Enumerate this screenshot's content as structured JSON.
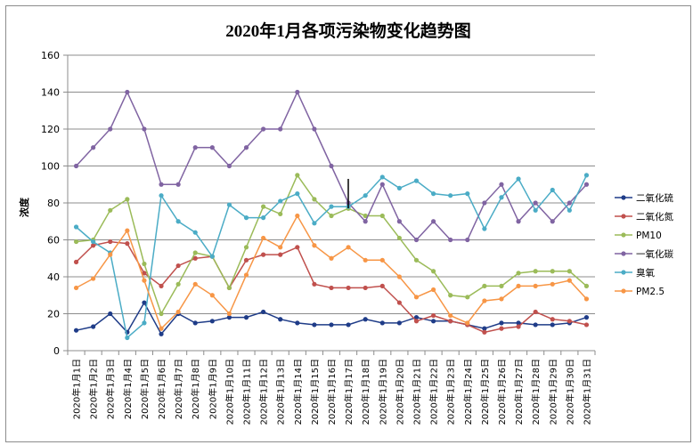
{
  "chart_data": {
    "type": "line",
    "title": "2020年1月各项污染物变化趋势图",
    "xlabel": "",
    "ylabel": "浓度",
    "ylim": [
      0,
      160
    ],
    "yticks": [
      0,
      20,
      40,
      60,
      80,
      100,
      120,
      140,
      160
    ],
    "grid": true,
    "legend_position": "right",
    "categories": [
      "2020年1月1日",
      "2020年1月2日",
      "2020年1月3日",
      "2020年1月4日",
      "2020年1月5日",
      "2020年1月6日",
      "2020年1月7日",
      "2020年1月8日",
      "2020年1月9日",
      "2020年1月10日",
      "2020年1月11日",
      "2020年1月12日",
      "2020年1月13日",
      "2020年1月14日",
      "2020年1月15日",
      "2020年1月16日",
      "2020年1月17日",
      "2020年1月18日",
      "2020年1月19日",
      "2020年1月20日",
      "2020年1月21日",
      "2020年1月22日",
      "2020年1月23日",
      "2020年1月24日",
      "2020年1月25日",
      "2020年1月26日",
      "2020年1月27日",
      "2020年1月28日",
      "2020年1月29日",
      "2020年1月30日",
      "2020年1月31日"
    ],
    "series": [
      {
        "name": "二氧化硫",
        "color": "#1f3c88",
        "marker": "circle",
        "values": [
          11,
          13,
          20,
          10,
          26,
          9,
          20,
          15,
          16,
          18,
          18,
          21,
          17,
          15,
          14,
          14,
          14,
          17,
          15,
          15,
          18,
          16,
          16,
          14,
          12,
          15,
          15,
          14,
          14,
          15,
          18
        ]
      },
      {
        "name": "二氧化氮",
        "color": "#c0504d",
        "marker": "circle",
        "values": [
          48,
          57,
          59,
          58,
          42,
          35,
          46,
          50,
          51,
          34,
          49,
          52,
          52,
          56,
          36,
          34,
          34,
          34,
          35,
          26,
          16,
          19,
          16,
          14,
          10,
          12,
          13,
          21,
          17,
          16,
          14
        ]
      },
      {
        "name": "PM10",
        "color": "#9bbb59",
        "marker": "circle",
        "values": [
          59,
          60,
          76,
          82,
          47,
          20,
          36,
          53,
          51,
          34,
          56,
          78,
          74,
          95,
          82,
          73,
          77,
          73,
          73,
          61,
          49,
          43,
          30,
          29,
          35,
          35,
          42,
          43,
          43,
          43,
          35
        ]
      },
      {
        "name": "一氧化碳",
        "color": "#8064a2",
        "marker": "circle",
        "values": [
          100,
          110,
          120,
          140,
          120,
          90,
          90,
          110,
          110,
          100,
          110,
          120,
          120,
          140,
          120,
          100,
          80,
          70,
          90,
          70,
          60,
          70,
          60,
          60,
          80,
          90,
          70,
          80,
          70,
          80,
          90
        ]
      },
      {
        "name": "臭氧",
        "color": "#4bacc6",
        "marker": "circle",
        "values": [
          67,
          59,
          53,
          7,
          15,
          84,
          70,
          64,
          51,
          79,
          72,
          72,
          81,
          85,
          69,
          78,
          78,
          84,
          94,
          88,
          92,
          85,
          84,
          85,
          66,
          83,
          93,
          76,
          87,
          76,
          95
        ]
      },
      {
        "name": "PM2.5",
        "color": "#f79646",
        "marker": "circle",
        "values": [
          34,
          39,
          52,
          65,
          38,
          12,
          21,
          36,
          30,
          20,
          41,
          61,
          56,
          73,
          57,
          50,
          56,
          49,
          49,
          40,
          29,
          33,
          19,
          15,
          27,
          28,
          35,
          35,
          36,
          38,
          28
        ]
      }
    ]
  }
}
